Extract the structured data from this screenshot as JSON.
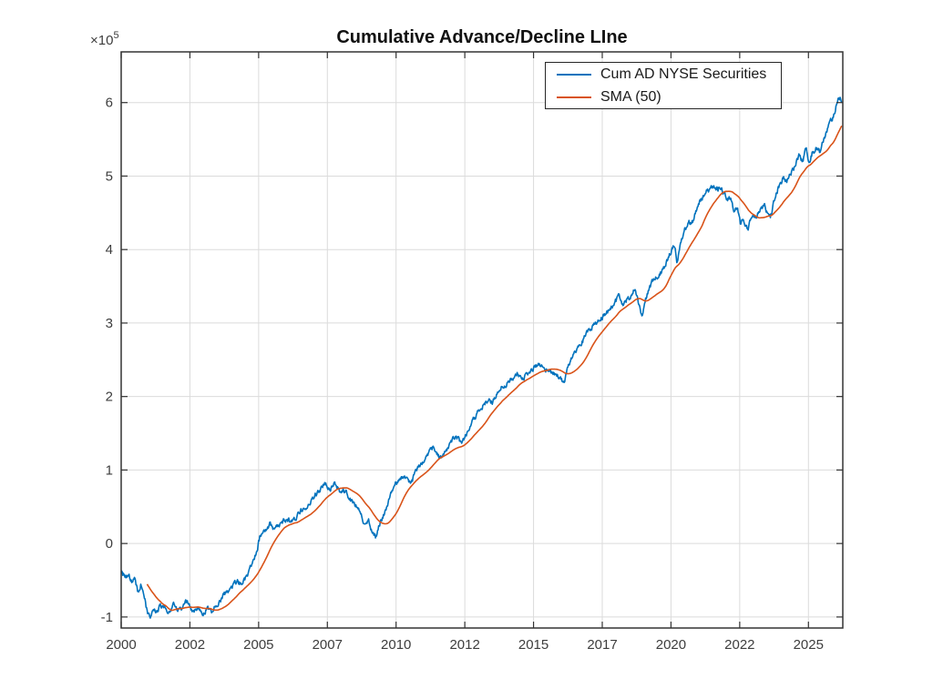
{
  "figure": {
    "background": "#ffffff"
  },
  "legend": {
    "position": "top-right-inside",
    "entries": [
      {
        "label": "Cum AD NYSE Securities",
        "color": "#0072BD"
      },
      {
        "label": "SMA (50)",
        "color": "#D95319"
      }
    ]
  },
  "style": {
    "grid_color": "#dbdbdb",
    "axis_color": "#333333",
    "tick_label_color": "#3d3d3d",
    "title_color": "#111111",
    "line_width": 1.6,
    "tick_length": 7
  },
  "chart_data": {
    "type": "line",
    "title": "Cumulative Advance/Decline LIne",
    "xlabel": "",
    "ylabel": "",
    "y_axis_exponent": {
      "base": "×10",
      "power": "5"
    },
    "y_values_unit": "1e5",
    "grid": true,
    "legend_position": "top-right",
    "xlim": [
      2000,
      2026.25
    ],
    "ylim": [
      -1.15,
      6.69
    ],
    "x_ticks": [
      {
        "value": 2000.0,
        "label": "2000"
      },
      {
        "value": 2002.5,
        "label": "2002"
      },
      {
        "value": 2005.0,
        "label": "2005"
      },
      {
        "value": 2007.5,
        "label": "2007"
      },
      {
        "value": 2010.0,
        "label": "2010"
      },
      {
        "value": 2012.5,
        "label": "2012"
      },
      {
        "value": 2015.0,
        "label": "2015"
      },
      {
        "value": 2017.5,
        "label": "2017"
      },
      {
        "value": 2020.0,
        "label": "2020"
      },
      {
        "value": 2022.5,
        "label": "2022"
      },
      {
        "value": 2025.0,
        "label": "2025"
      }
    ],
    "y_ticks": [
      {
        "value": -1,
        "label": "-1"
      },
      {
        "value": 0,
        "label": "0"
      },
      {
        "value": 1,
        "label": "1"
      },
      {
        "value": 2,
        "label": "2"
      },
      {
        "value": 3,
        "label": "3"
      },
      {
        "value": 4,
        "label": "4"
      },
      {
        "value": 5,
        "label": "5"
      },
      {
        "value": 6,
        "label": "6"
      }
    ],
    "series": [
      {
        "name": "Cum AD NYSE Securities",
        "color": "#0072BD",
        "points": [
          [
            2000.0,
            -0.38
          ],
          [
            2000.15,
            -0.46
          ],
          [
            2000.25,
            -0.43
          ],
          [
            2000.4,
            -0.53
          ],
          [
            2000.5,
            -0.49
          ],
          [
            2000.63,
            -0.68
          ],
          [
            2000.72,
            -0.55
          ],
          [
            2000.85,
            -0.75
          ],
          [
            2000.96,
            -0.95
          ],
          [
            2001.06,
            -0.98
          ],
          [
            2001.16,
            -0.88
          ],
          [
            2001.3,
            -0.95
          ],
          [
            2001.42,
            -0.82
          ],
          [
            2001.55,
            -0.88
          ],
          [
            2001.72,
            -0.94
          ],
          [
            2001.9,
            -0.84
          ],
          [
            2002.1,
            -0.92
          ],
          [
            2002.4,
            -0.79
          ],
          [
            2002.6,
            -0.92
          ],
          [
            2002.8,
            -0.87
          ],
          [
            2002.95,
            -0.96
          ],
          [
            2003.15,
            -0.88
          ],
          [
            2003.3,
            -0.92
          ],
          [
            2003.55,
            -0.8
          ],
          [
            2003.8,
            -0.68
          ],
          [
            2004.05,
            -0.59
          ],
          [
            2004.2,
            -0.52
          ],
          [
            2004.4,
            -0.55
          ],
          [
            2004.55,
            -0.45
          ],
          [
            2004.7,
            -0.33
          ],
          [
            2004.9,
            -0.15
          ],
          [
            2005.05,
            0.1
          ],
          [
            2005.2,
            0.15
          ],
          [
            2005.4,
            0.26
          ],
          [
            2005.55,
            0.2
          ],
          [
            2005.75,
            0.26
          ],
          [
            2006.0,
            0.34
          ],
          [
            2006.2,
            0.3
          ],
          [
            2006.5,
            0.42
          ],
          [
            2006.9,
            0.57
          ],
          [
            2007.1,
            0.68
          ],
          [
            2007.4,
            0.82
          ],
          [
            2007.55,
            0.74
          ],
          [
            2007.8,
            0.8
          ],
          [
            2007.95,
            0.7
          ],
          [
            2008.1,
            0.73
          ],
          [
            2008.35,
            0.6
          ],
          [
            2008.7,
            0.45
          ],
          [
            2008.85,
            0.27
          ],
          [
            2009.0,
            0.33
          ],
          [
            2009.1,
            0.17
          ],
          [
            2009.25,
            0.08
          ],
          [
            2009.35,
            0.2
          ],
          [
            2009.5,
            0.35
          ],
          [
            2009.7,
            0.52
          ],
          [
            2009.85,
            0.75
          ],
          [
            2010.1,
            0.86
          ],
          [
            2010.3,
            0.92
          ],
          [
            2010.45,
            0.82
          ],
          [
            2010.6,
            0.87
          ],
          [
            2010.8,
            1.04
          ],
          [
            2011.0,
            1.13
          ],
          [
            2011.2,
            1.25
          ],
          [
            2011.35,
            1.3
          ],
          [
            2011.57,
            1.16
          ],
          [
            2011.75,
            1.23
          ],
          [
            2011.95,
            1.36
          ],
          [
            2012.17,
            1.46
          ],
          [
            2012.38,
            1.36
          ],
          [
            2012.6,
            1.52
          ],
          [
            2012.8,
            1.68
          ],
          [
            2013.0,
            1.8
          ],
          [
            2013.3,
            1.95
          ],
          [
            2013.5,
            1.92
          ],
          [
            2013.8,
            2.12
          ],
          [
            2014.1,
            2.2
          ],
          [
            2014.4,
            2.32
          ],
          [
            2014.65,
            2.25
          ],
          [
            2014.9,
            2.36
          ],
          [
            2015.15,
            2.42
          ],
          [
            2015.4,
            2.4
          ],
          [
            2015.6,
            2.33
          ],
          [
            2015.85,
            2.28
          ],
          [
            2016.0,
            2.24
          ],
          [
            2016.1,
            2.18
          ],
          [
            2016.3,
            2.45
          ],
          [
            2016.6,
            2.65
          ],
          [
            2016.9,
            2.83
          ],
          [
            2017.1,
            2.94
          ],
          [
            2017.3,
            3.0
          ],
          [
            2017.5,
            3.07
          ],
          [
            2017.75,
            3.17
          ],
          [
            2018.0,
            3.3
          ],
          [
            2018.1,
            3.37
          ],
          [
            2018.25,
            3.24
          ],
          [
            2018.45,
            3.33
          ],
          [
            2018.7,
            3.47
          ],
          [
            2018.82,
            3.28
          ],
          [
            2018.93,
            3.09
          ],
          [
            2019.1,
            3.35
          ],
          [
            2019.3,
            3.55
          ],
          [
            2019.5,
            3.64
          ],
          [
            2019.7,
            3.72
          ],
          [
            2019.9,
            3.88
          ],
          [
            2020.05,
            4.02
          ],
          [
            2020.14,
            4.06
          ],
          [
            2020.22,
            3.78
          ],
          [
            2020.35,
            4.08
          ],
          [
            2020.5,
            4.27
          ],
          [
            2020.65,
            4.38
          ],
          [
            2020.75,
            4.33
          ],
          [
            2020.9,
            4.52
          ],
          [
            2021.05,
            4.66
          ],
          [
            2021.2,
            4.74
          ],
          [
            2021.35,
            4.81
          ],
          [
            2021.5,
            4.86
          ],
          [
            2021.65,
            4.8
          ],
          [
            2021.8,
            4.86
          ],
          [
            2021.95,
            4.75
          ],
          [
            2022.05,
            4.67
          ],
          [
            2022.15,
            4.72
          ],
          [
            2022.3,
            4.5
          ],
          [
            2022.42,
            4.57
          ],
          [
            2022.52,
            4.36
          ],
          [
            2022.62,
            4.45
          ],
          [
            2022.72,
            4.33
          ],
          [
            2022.8,
            4.28
          ],
          [
            2022.95,
            4.48
          ],
          [
            2023.1,
            4.41
          ],
          [
            2023.25,
            4.56
          ],
          [
            2023.4,
            4.6
          ],
          [
            2023.5,
            4.5
          ],
          [
            2023.62,
            4.44
          ],
          [
            2023.78,
            4.7
          ],
          [
            2023.95,
            4.88
          ],
          [
            2024.1,
            5.0
          ],
          [
            2024.2,
            4.92
          ],
          [
            2024.35,
            5.03
          ],
          [
            2024.5,
            5.13
          ],
          [
            2024.65,
            5.28
          ],
          [
            2024.78,
            5.2
          ],
          [
            2024.92,
            5.37
          ],
          [
            2025.02,
            5.19
          ],
          [
            2025.15,
            5.33
          ],
          [
            2025.3,
            5.38
          ],
          [
            2025.42,
            5.33
          ],
          [
            2025.6,
            5.55
          ],
          [
            2025.8,
            5.72
          ],
          [
            2025.95,
            5.88
          ],
          [
            2026.08,
            6.06
          ],
          [
            2026.15,
            6.08
          ],
          [
            2026.22,
            5.99
          ]
        ]
      },
      {
        "name": "SMA (50)",
        "color": "#D95319",
        "type": "derived",
        "window_samples": 50,
        "description": "50-period trailing simple moving average of first series"
      }
    ]
  }
}
